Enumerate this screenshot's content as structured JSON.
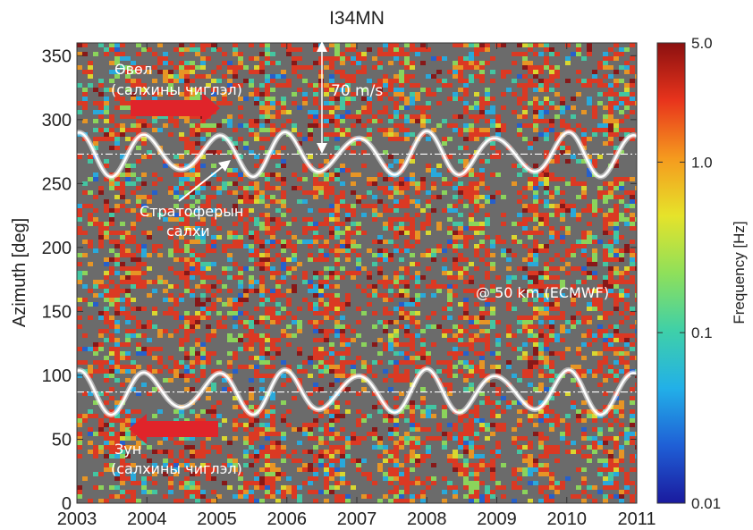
{
  "chart_data": {
    "type": "heatmap",
    "title": "I34MN",
    "ylabel": "Azimuth [deg]",
    "xlabel": "",
    "xlim": [
      2003,
      2011
    ],
    "ylim": [
      0,
      360
    ],
    "x_ticks": [
      "2003",
      "2004",
      "2005",
      "2006",
      "2007",
      "2008",
      "2009",
      "2010",
      "2011"
    ],
    "y_ticks": [
      "0",
      "50",
      "100",
      "150",
      "200",
      "250",
      "300",
      "350"
    ],
    "colorbar": {
      "label": "Frequency [Hz]",
      "scale": "log",
      "range": [
        0.01,
        5.0
      ],
      "ticks": [
        "5.0",
        "1.0",
        "0.1",
        "0.01"
      ],
      "colormap": [
        "#1a1a9e",
        "#1f5fd6",
        "#22b0e8",
        "#3fd0a8",
        "#8fe05a",
        "#e6e32a",
        "#f59a1e",
        "#e8341c",
        "#8b1010"
      ]
    },
    "background_color": "#6b6b6b",
    "wind_bands": [
      {
        "reference_azimuth": 273,
        "amplitude_deg": 15,
        "period_years": 1
      },
      {
        "reference_azimuth": 87,
        "amplitude_deg": 15,
        "period_years": 1
      }
    ],
    "annotations": {
      "west_wind_label": [
        "Өвөл",
        "(салхины чиглэл)"
      ],
      "east_wind_label": [
        "Зун",
        "(салхины чиглэл)"
      ],
      "stratosphere_label": [
        "Стратоферын",
        "салхи"
      ],
      "speed_scale": "70 m/s",
      "altitude_note": "@ 50 km (ECMWF)"
    }
  }
}
